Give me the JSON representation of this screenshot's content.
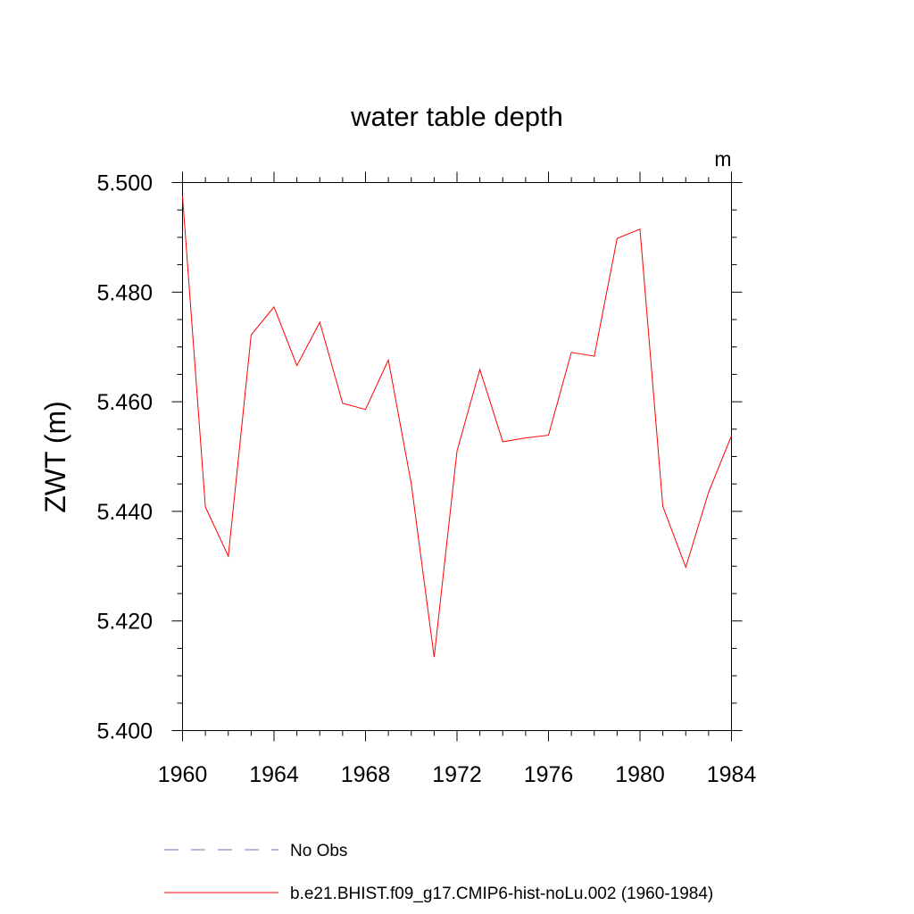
{
  "chart_data": {
    "type": "line",
    "title": "water table depth",
    "units_label": "m",
    "ylabel": "ZWT  (m)",
    "xlabel": "",
    "xlim": [
      1960,
      1984
    ],
    "ylim": [
      5.4,
      5.5
    ],
    "x_ticks": [
      1960,
      1964,
      1968,
      1972,
      1976,
      1980,
      1984
    ],
    "y_ticks": [
      "5.400",
      "5.420",
      "5.440",
      "5.460",
      "5.480",
      "5.500"
    ],
    "grid": false,
    "legend_position": "bottom",
    "series": [
      {
        "name": "b.e21.BHIST.f09_g17.CMIP6-hist-noLu.002 (1960-1984)",
        "color": "#ff0000",
        "style": "solid",
        "x": [
          1960,
          1961,
          1962,
          1963,
          1964,
          1965,
          1966,
          1967,
          1968,
          1969,
          1970,
          1971,
          1972,
          1973,
          1974,
          1975,
          1976,
          1977,
          1978,
          1979,
          1980,
          1981,
          1982,
          1983,
          1984
        ],
        "y": [
          5.4975,
          5.4408,
          5.4318,
          5.4722,
          5.4773,
          5.4666,
          5.4745,
          5.4597,
          5.4586,
          5.4676,
          5.445,
          5.4134,
          5.451,
          5.4659,
          5.4527,
          5.4534,
          5.4539,
          5.469,
          5.4683,
          5.4898,
          5.4915,
          5.4409,
          5.4298,
          5.4435,
          5.4538
        ]
      }
    ],
    "legend": [
      {
        "label": "No Obs",
        "color": "#7070c0",
        "style": "dashed"
      },
      {
        "label": "b.e21.BHIST.f09_g17.CMIP6-hist-noLu.002 (1960-1984)",
        "color": "#ff0000",
        "style": "solid"
      }
    ]
  }
}
